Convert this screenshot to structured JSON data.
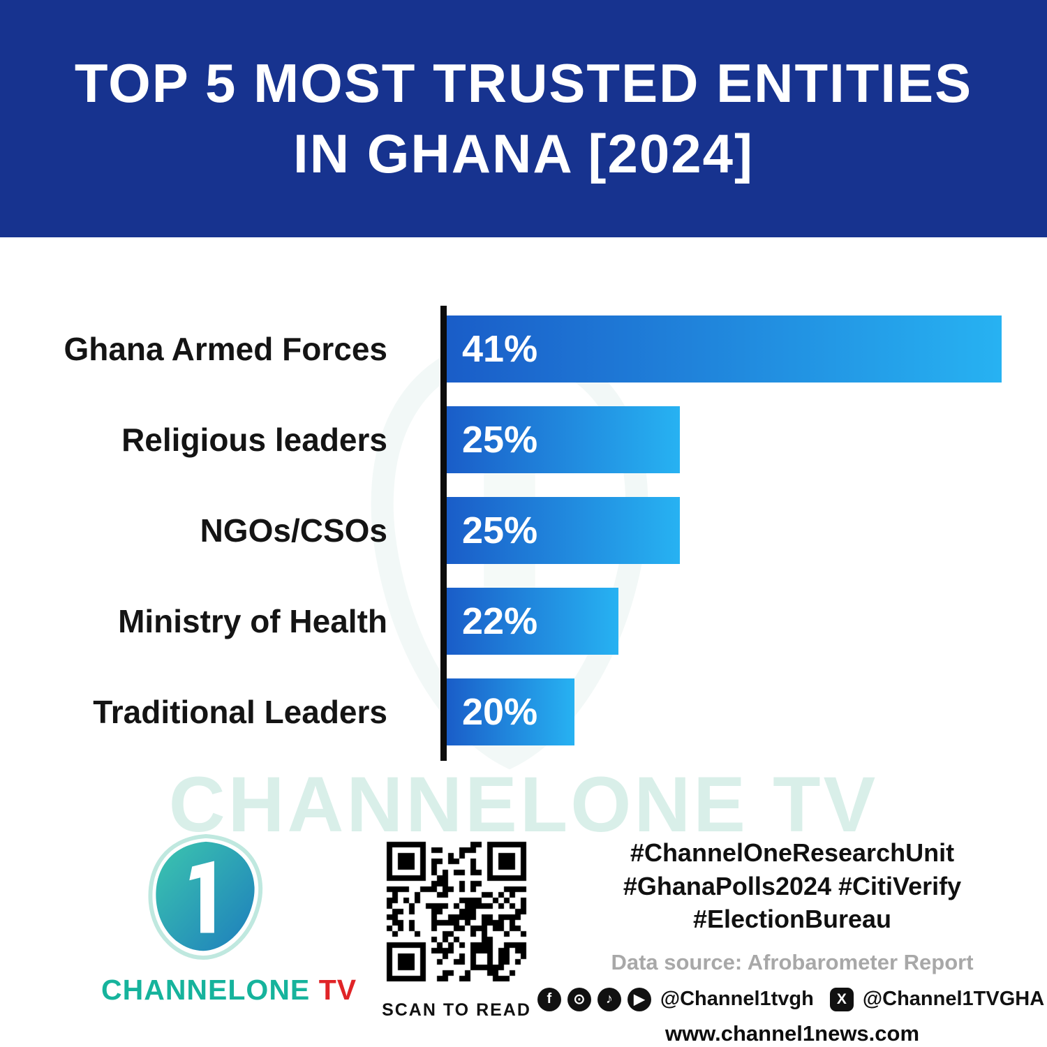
{
  "header": {
    "title_line1": "TOP 5 MOST TRUSTED ENTITIES",
    "title_line2": "IN GHANA [2024]",
    "background_color": "#17338f"
  },
  "chart_data": {
    "type": "bar",
    "orientation": "horizontal",
    "title": "Top 5 Most Trusted Entities in Ghana [2024]",
    "categories": [
      "Ghana Armed Forces",
      "Religious leaders",
      "NGOs/CSOs",
      "Ministry of Health",
      "Traditional Leaders"
    ],
    "values": [
      41,
      25,
      25,
      22,
      20
    ],
    "value_labels": [
      "41%",
      "25%",
      "25%",
      "22%",
      "20%"
    ],
    "bar_display_widths_pct": [
      100,
      42,
      42,
      31,
      23
    ],
    "bar_gradient": [
      "#1a5dc8",
      "#27b2f2"
    ],
    "axis_color": "#0c0c0c",
    "grid": false,
    "legend": false
  },
  "watermark": {
    "text": "CHANNELONE TV",
    "color": "#d9efe9"
  },
  "footer": {
    "logo": {
      "digit": "1",
      "brand_channel": "CHANNELONE",
      "brand_tv": " TV",
      "teal": "#16b39c",
      "red": "#e02427"
    },
    "qr_caption": "SCAN TO READ",
    "hashtags_line1": "#ChannelOneResearchUnit",
    "hashtags_line2": "#GhanaPolls2024 #CitiVerify",
    "hashtags_line3": "#ElectionBureau",
    "data_source": "Data source: Afrobarometer Report",
    "social_handle_1": "@Channel1tvgh",
    "social_handle_2": "@Channel1TVGHA",
    "website": "www.channel1news.com",
    "social_icon_glyphs": {
      "facebook": "f",
      "instagram": "⊙",
      "tiktok": "♪",
      "youtube": "▶",
      "x": "X"
    }
  }
}
